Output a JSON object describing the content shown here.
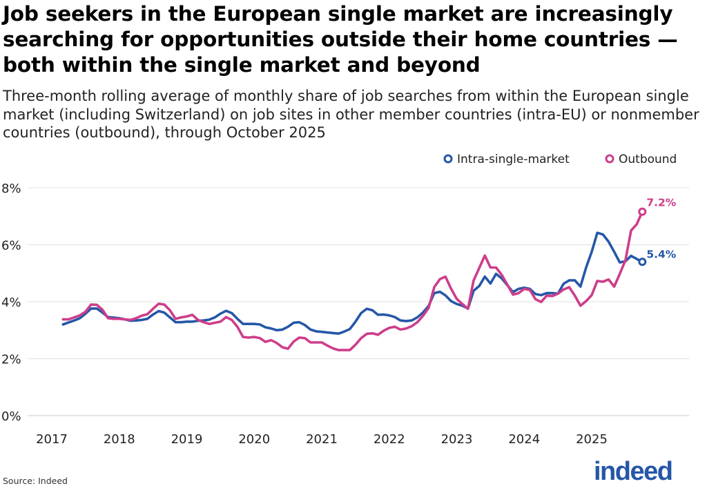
{
  "chart_data": {
    "type": "line",
    "title": "Job seekers in the European single market are increasingly searching for opportunities outside their home countries — both within the single market and beyond",
    "subtitle": "Three-month rolling average of monthly share of job searches from within the European single market (including Switzerland) on job sites in other member countries (intra-EU) or nonmember countries (outbound), through October 2025",
    "xlabel": "",
    "ylabel": "",
    "start_month": "2017-03",
    "end_month": "2025-10",
    "frequency": "monthly",
    "x_ticks": [
      "2017",
      "2018",
      "2019",
      "2020",
      "2021",
      "2022",
      "2023",
      "2024",
      "2025"
    ],
    "y_ticks": [
      "0%",
      "2%",
      "4%",
      "6%",
      "8%"
    ],
    "ylim": [
      0,
      8
    ],
    "grid": true,
    "legend_position": "top-right",
    "series": [
      {
        "name": "Intra-single-market",
        "color": "#2557a7",
        "end_label": "5.4%",
        "values": [
          3.2,
          3.27,
          3.34,
          3.42,
          3.58,
          3.76,
          3.76,
          3.62,
          3.46,
          3.44,
          3.42,
          3.38,
          3.33,
          3.34,
          3.36,
          3.4,
          3.55,
          3.67,
          3.62,
          3.45,
          3.28,
          3.28,
          3.3,
          3.3,
          3.33,
          3.34,
          3.37,
          3.45,
          3.58,
          3.68,
          3.6,
          3.4,
          3.22,
          3.22,
          3.22,
          3.2,
          3.1,
          3.06,
          3.0,
          3.02,
          3.12,
          3.26,
          3.28,
          3.18,
          3.02,
          2.96,
          2.94,
          2.92,
          2.9,
          2.88,
          2.95,
          3.04,
          3.3,
          3.6,
          3.75,
          3.7,
          3.54,
          3.55,
          3.52,
          3.46,
          3.34,
          3.32,
          3.34,
          3.45,
          3.62,
          3.85,
          4.3,
          4.35,
          4.22,
          4.02,
          3.92,
          3.86,
          3.76,
          4.38,
          4.55,
          4.88,
          4.64,
          4.98,
          4.82,
          4.58,
          4.34,
          4.45,
          4.49,
          4.45,
          4.27,
          4.23,
          4.3,
          4.3,
          4.28,
          4.63,
          4.75,
          4.75,
          4.53,
          5.2,
          5.75,
          6.42,
          6.36,
          6.11,
          5.75,
          5.38,
          5.42,
          5.61,
          5.5,
          5.4
        ]
      },
      {
        "name": "Outbound",
        "color": "#cd3d8a",
        "end_label": "7.2%",
        "values": [
          3.38,
          3.38,
          3.45,
          3.52,
          3.65,
          3.9,
          3.89,
          3.72,
          3.42,
          3.4,
          3.4,
          3.38,
          3.36,
          3.42,
          3.51,
          3.56,
          3.75,
          3.93,
          3.9,
          3.7,
          3.4,
          3.45,
          3.48,
          3.54,
          3.36,
          3.28,
          3.22,
          3.26,
          3.3,
          3.46,
          3.36,
          3.12,
          2.76,
          2.74,
          2.76,
          2.72,
          2.59,
          2.65,
          2.55,
          2.4,
          2.35,
          2.6,
          2.74,
          2.72,
          2.57,
          2.57,
          2.57,
          2.46,
          2.36,
          2.3,
          2.3,
          2.3,
          2.49,
          2.72,
          2.87,
          2.89,
          2.84,
          2.98,
          3.08,
          3.12,
          3.02,
          3.06,
          3.14,
          3.28,
          3.5,
          3.78,
          4.51,
          4.79,
          4.88,
          4.45,
          4.1,
          3.92,
          3.75,
          4.74,
          5.18,
          5.62,
          5.2,
          5.2,
          4.94,
          4.6,
          4.25,
          4.3,
          4.45,
          4.41,
          4.09,
          3.99,
          4.21,
          4.2,
          4.28,
          4.43,
          4.51,
          4.21,
          3.86,
          4.02,
          4.23,
          4.73,
          4.7,
          4.78,
          4.53,
          4.98,
          5.46,
          6.5,
          6.72,
          7.16
        ]
      }
    ]
  },
  "source": "Source: Indeed",
  "logo": "indeed"
}
